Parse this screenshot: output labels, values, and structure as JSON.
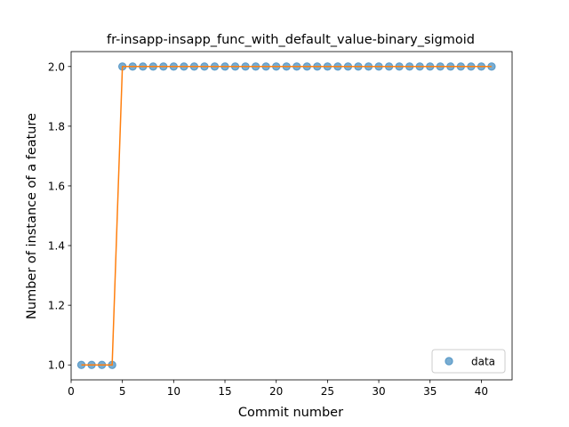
{
  "chart_data": {
    "type": "scatter",
    "title": "fr-insapp-insapp_func_with_default_value-binary_sigmoid",
    "xlabel": "Commit number",
    "ylabel": "Number of instance of a feature",
    "xlim": [
      -0.0,
      43.0
    ],
    "ylim": [
      0.95,
      2.05
    ],
    "x_ticks": [
      0,
      5,
      10,
      15,
      20,
      25,
      30,
      35,
      40
    ],
    "x_tick_labels": [
      "0",
      "5",
      "10",
      "15",
      "20",
      "25",
      "30",
      "35",
      "40"
    ],
    "y_ticks": [
      1.0,
      1.2,
      1.4,
      1.6,
      1.8,
      2.0
    ],
    "y_tick_labels": [
      "1.0",
      "1.2",
      "1.4",
      "1.6",
      "1.8",
      "2.0"
    ],
    "grid": false,
    "legend_position": "lower-right",
    "series": [
      {
        "name": "data",
        "kind": "markers",
        "color": "#1f77b4",
        "x": [
          1,
          2,
          3,
          4,
          5,
          6,
          7,
          8,
          9,
          10,
          11,
          12,
          13,
          14,
          15,
          16,
          17,
          18,
          19,
          20,
          21,
          22,
          23,
          24,
          25,
          26,
          27,
          28,
          29,
          30,
          31,
          32,
          33,
          34,
          35,
          36,
          37,
          38,
          39,
          40,
          41
        ],
        "y": [
          1,
          1,
          1,
          1,
          2,
          2,
          2,
          2,
          2,
          2,
          2,
          2,
          2,
          2,
          2,
          2,
          2,
          2,
          2,
          2,
          2,
          2,
          2,
          2,
          2,
          2,
          2,
          2,
          2,
          2,
          2,
          2,
          2,
          2,
          2,
          2,
          2,
          2,
          2,
          2,
          2
        ]
      },
      {
        "kind": "line",
        "color": "#ff7f0e",
        "x": [
          1,
          2,
          3,
          4,
          5,
          6,
          7,
          8,
          9,
          10,
          11,
          12,
          13,
          14,
          15,
          16,
          17,
          18,
          19,
          20,
          21,
          22,
          23,
          24,
          25,
          26,
          27,
          28,
          29,
          30,
          31,
          32,
          33,
          34,
          35,
          36,
          37,
          38,
          39,
          40,
          41
        ],
        "y": [
          1,
          1,
          1,
          1,
          2,
          2,
          2,
          2,
          2,
          2,
          2,
          2,
          2,
          2,
          2,
          2,
          2,
          2,
          2,
          2,
          2,
          2,
          2,
          2,
          2,
          2,
          2,
          2,
          2,
          2,
          2,
          2,
          2,
          2,
          2,
          2,
          2,
          2,
          2,
          2,
          2
        ]
      }
    ]
  }
}
